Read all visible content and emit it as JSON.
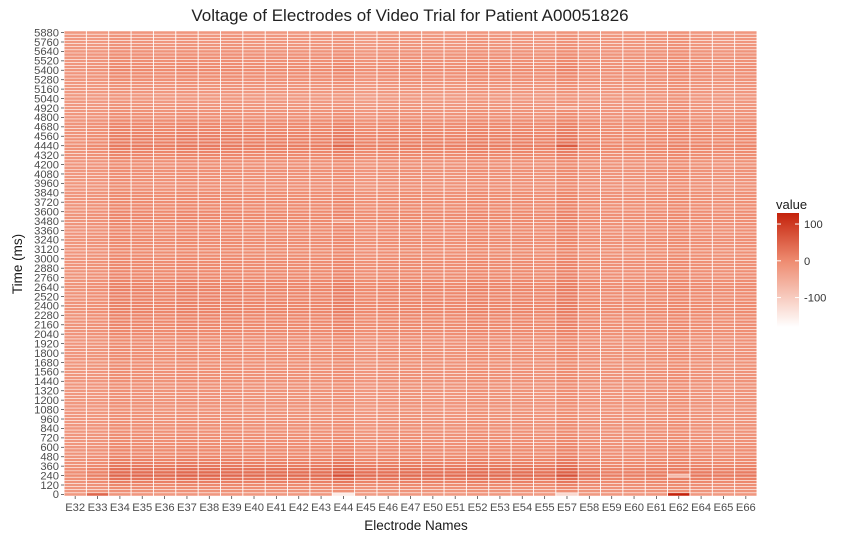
{
  "chart_data": {
    "type": "heatmap",
    "title": "Voltage of Electrodes of Video Trial for Patient A00051826",
    "xlabel": "Electrode Names",
    "ylabel": "Time (ms)",
    "x_categories": [
      "E32",
      "E33",
      "E34",
      "E35",
      "E36",
      "E37",
      "E38",
      "E39",
      "E40",
      "E41",
      "E42",
      "E43",
      "E44",
      "E45",
      "E46",
      "E47",
      "E50",
      "E51",
      "E52",
      "E53",
      "E54",
      "E55",
      "E57",
      "E58",
      "E59",
      "E60",
      "E61",
      "E62",
      "E64",
      "E65",
      "E66"
    ],
    "y_start": 0,
    "y_step": 40,
    "y_end": 5880,
    "y_tick_labels": [
      "0",
      "120",
      "240",
      "360",
      "480",
      "600",
      "720",
      "840",
      "960",
      "1080",
      "1200",
      "1320",
      "1440",
      "1560",
      "1680",
      "1800",
      "1920",
      "2040",
      "2160",
      "2280",
      "2400",
      "2520",
      "2640",
      "2760",
      "2880",
      "3000",
      "3120",
      "3240",
      "3360",
      "3480",
      "3600",
      "3720",
      "3840",
      "3960",
      "4080",
      "4200",
      "4320",
      "4440",
      "4560",
      "4680",
      "4800",
      "4920",
      "5040",
      "5160",
      "5280",
      "5400",
      "5520",
      "5640",
      "5760",
      "5880"
    ],
    "time_profile": [
      {
        "time": 0,
        "value": -20
      },
      {
        "time": 120,
        "value": 0
      },
      {
        "time": 240,
        "value": 40
      },
      {
        "time": 360,
        "value": 20
      },
      {
        "time": 480,
        "value": 0
      },
      {
        "time": 840,
        "value": -12
      },
      {
        "time": 1200,
        "value": -15
      },
      {
        "time": 1560,
        "value": -10
      },
      {
        "time": 1920,
        "value": -8
      },
      {
        "time": 2280,
        "value": 5
      },
      {
        "time": 2520,
        "value": 8
      },
      {
        "time": 2880,
        "value": -3
      },
      {
        "time": 3240,
        "value": -5
      },
      {
        "time": 3600,
        "value": 0
      },
      {
        "time": 3960,
        "value": -10
      },
      {
        "time": 4200,
        "value": -12
      },
      {
        "time": 4440,
        "value": 15
      },
      {
        "time": 4560,
        "value": 10
      },
      {
        "time": 4800,
        "value": -8
      },
      {
        "time": 5040,
        "value": -25
      },
      {
        "time": 5280,
        "value": -10
      },
      {
        "time": 5400,
        "value": 0
      },
      {
        "time": 5640,
        "value": -15
      },
      {
        "time": 5880,
        "value": -20
      }
    ],
    "electrode_offsets": [
      -15,
      -10,
      5,
      3,
      0,
      5,
      3,
      3,
      0,
      0,
      0,
      0,
      8,
      -5,
      -2,
      0,
      -2,
      -3,
      3,
      0,
      0,
      -3,
      10,
      -5,
      -8,
      -8,
      -5,
      0,
      -5,
      -8,
      -5
    ],
    "electrode_time_sensitivity": [
      0.3,
      0.6,
      1.0,
      1.0,
      1.0,
      1.1,
      1.1,
      1.0,
      1.0,
      1.0,
      1.0,
      1.0,
      1.3,
      1.1,
      1.0,
      1.0,
      1.0,
      1.0,
      1.0,
      1.0,
      1.0,
      1.0,
      1.2,
      0.8,
      0.6,
      0.6,
      0.6,
      0.6,
      0.7,
      0.7,
      0.7
    ],
    "notable_cells": [
      {
        "electrode": "E62",
        "time": 0,
        "value": 140
      },
      {
        "electrode": "E33",
        "time": 0,
        "value": 45
      },
      {
        "electrode": "E44",
        "time": 0,
        "value": -150
      },
      {
        "electrode": "E57",
        "time": 0,
        "value": -120
      },
      {
        "electrode": "E44",
        "time": 240,
        "value": 75
      },
      {
        "electrode": "E57",
        "time": 240,
        "value": 70
      },
      {
        "electrode": "E62",
        "time": 240,
        "value": -70
      },
      {
        "electrode": "E57",
        "time": 4440,
        "value": 60
      },
      {
        "electrode": "E44",
        "time": 4440,
        "value": 45
      },
      {
        "electrode": "E57",
        "time": 4920,
        "value": -45
      },
      {
        "electrode": "E44",
        "time": 3480,
        "value": -35
      }
    ],
    "color_scale": {
      "low": "#ffffff",
      "mid": "#ee8b70",
      "high": "#c4220b",
      "min": -180,
      "mid_value": 0,
      "max": 130,
      "legend_ticks": [
        100,
        0,
        -100
      ]
    },
    "legend": {
      "title": "value",
      "placement": "right"
    },
    "grid": true
  }
}
